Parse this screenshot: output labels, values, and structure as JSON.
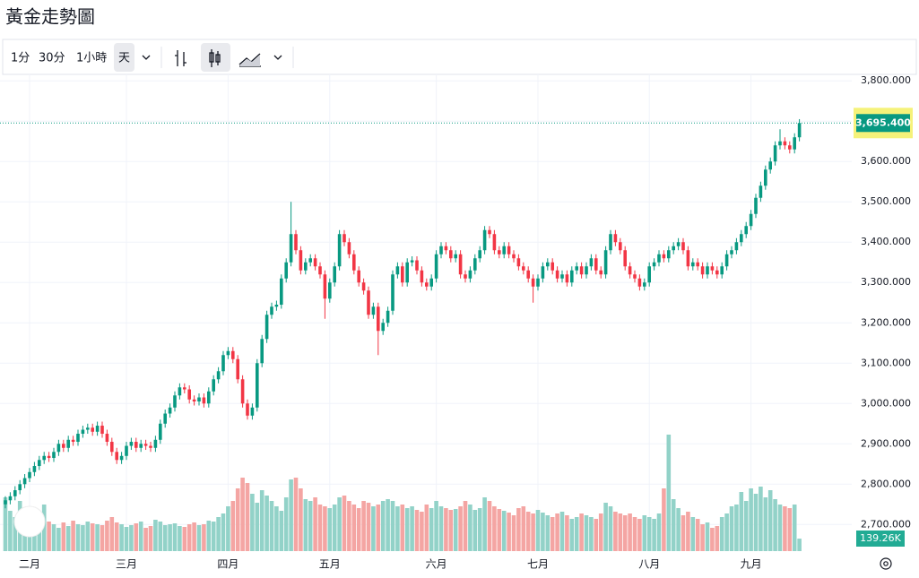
{
  "chart_data": {
    "type": "candlestick",
    "title": "黃金走勢圖",
    "toolbar": {
      "intervals": [
        "1分",
        "30分",
        "1小時",
        "天"
      ],
      "selected": 3
    },
    "up_color": "#089981",
    "down_color": "#f23645",
    "volume_up_color": "#92d2c8",
    "volume_down_color": "#f4a5a3",
    "ylim": [
      2634,
      3816
    ],
    "volume_lim": [
      0,
      5320
    ],
    "grid": true,
    "yticks": [
      {
        "value": 2700,
        "label": "2,700.000"
      },
      {
        "value": 2800,
        "label": "2,800.000"
      },
      {
        "value": 2900,
        "label": "2,900.000"
      },
      {
        "value": 3000,
        "label": "3,000.000"
      },
      {
        "value": 3100,
        "label": "3,100.000"
      },
      {
        "value": 3200,
        "label": "3,200.000"
      },
      {
        "value": 3300,
        "label": "3,300.000"
      },
      {
        "value": 3400,
        "label": "3,400.000"
      },
      {
        "value": 3500,
        "label": "3,500.000"
      },
      {
        "value": 3600,
        "label": "3,600.000"
      },
      {
        "value": 3700,
        "label": "3,700.000"
      },
      {
        "value": 3800,
        "label": "3,800.000"
      }
    ],
    "xticks": [
      {
        "value": 5,
        "label": "二月"
      },
      {
        "value": 25,
        "label": "三月"
      },
      {
        "value": 46,
        "label": "四月"
      },
      {
        "value": 67,
        "label": "五月"
      },
      {
        "value": 89,
        "label": "六月"
      },
      {
        "value": 110,
        "label": "七月"
      },
      {
        "value": 133,
        "label": "八月"
      },
      {
        "value": 154,
        "label": "九月"
      }
    ],
    "last_price_label": "3,695.400",
    "last_volume_label": "139.26K",
    "series": {
      "open": [
        2750,
        2760,
        2770,
        2785,
        2800,
        2815,
        2830,
        2845,
        2860,
        2870,
        2865,
        2880,
        2900,
        2890,
        2910,
        2905,
        2925,
        2935,
        2940,
        2930,
        2945,
        2925,
        2905,
        2880,
        2860,
        2870,
        2895,
        2905,
        2890,
        2900,
        2895,
        2890,
        2910,
        2950,
        2975,
        2990,
        3020,
        3040,
        3035,
        3010,
        3005,
        3015,
        3000,
        3030,
        3060,
        3080,
        3120,
        3130,
        3110,
        3060,
        3000,
        2970,
        2990,
        3100,
        3160,
        3220,
        3240,
        3245,
        3310,
        3350,
        3420,
        3380,
        3330,
        3350,
        3360,
        3340,
        3320,
        3260,
        3300,
        3340,
        3420,
        3400,
        3370,
        3330,
        3300,
        3280,
        3220,
        3240,
        3180,
        3200,
        3230,
        3320,
        3340,
        3300,
        3350,
        3355,
        3330,
        3300,
        3290,
        3310,
        3370,
        3390,
        3380,
        3360,
        3370,
        3320,
        3310,
        3330,
        3360,
        3380,
        3430,
        3420,
        3380,
        3370,
        3390,
        3370,
        3360,
        3340,
        3330,
        3310,
        3290,
        3310,
        3340,
        3350,
        3330,
        3310,
        3320,
        3300,
        3330,
        3340,
        3320,
        3340,
        3360,
        3330,
        3320,
        3380,
        3420,
        3400,
        3380,
        3340,
        3320,
        3310,
        3290,
        3300,
        3340,
        3350,
        3370,
        3360,
        3380,
        3390,
        3400,
        3380,
        3340,
        3350,
        3340,
        3320,
        3340,
        3330,
        3320,
        3340,
        3370,
        3380,
        3400,
        3420,
        3440,
        3470,
        3510,
        3540,
        3580,
        3600,
        3640,
        3650,
        3640,
        3630,
        3660
      ],
      "high": [
        2770,
        2780,
        2795,
        2810,
        2825,
        2840,
        2855,
        2870,
        2880,
        2880,
        2890,
        2910,
        2910,
        2920,
        2920,
        2935,
        2945,
        2950,
        2950,
        2955,
        2955,
        2935,
        2915,
        2890,
        2880,
        2905,
        2915,
        2915,
        2910,
        2910,
        2905,
        2920,
        2960,
        2985,
        3000,
        3030,
        3050,
        3050,
        3045,
        3020,
        3025,
        3025,
        3040,
        3070,
        3090,
        3130,
        3140,
        3140,
        3120,
        3070,
        3010,
        3000,
        3110,
        3170,
        3230,
        3250,
        3255,
        3320,
        3360,
        3500,
        3430,
        3390,
        3360,
        3370,
        3370,
        3350,
        3330,
        3310,
        3350,
        3430,
        3430,
        3410,
        3380,
        3340,
        3310,
        3290,
        3250,
        3250,
        3210,
        3240,
        3330,
        3350,
        3350,
        3360,
        3365,
        3365,
        3340,
        3310,
        3320,
        3380,
        3400,
        3400,
        3390,
        3380,
        3380,
        3330,
        3340,
        3370,
        3390,
        3440,
        3440,
        3430,
        3390,
        3400,
        3400,
        3380,
        3370,
        3350,
        3340,
        3320,
        3320,
        3350,
        3360,
        3360,
        3340,
        3330,
        3330,
        3340,
        3350,
        3350,
        3350,
        3370,
        3370,
        3340,
        3390,
        3430,
        3430,
        3410,
        3390,
        3350,
        3330,
        3320,
        3310,
        3350,
        3360,
        3380,
        3380,
        3390,
        3400,
        3410,
        3410,
        3390,
        3360,
        3360,
        3350,
        3350,
        3350,
        3340,
        3350,
        3380,
        3390,
        3410,
        3430,
        3450,
        3480,
        3520,
        3550,
        3590,
        3610,
        3650,
        3680,
        3660,
        3650,
        3670,
        3705
      ],
      "low": [
        2740,
        2750,
        2760,
        2775,
        2790,
        2805,
        2820,
        2835,
        2850,
        2855,
        2855,
        2870,
        2880,
        2880,
        2895,
        2895,
        2915,
        2925,
        2920,
        2920,
        2915,
        2895,
        2870,
        2850,
        2850,
        2860,
        2885,
        2880,
        2880,
        2885,
        2880,
        2880,
        2900,
        2940,
        2965,
        2980,
        3010,
        3025,
        3000,
        2995,
        2995,
        2990,
        2990,
        3020,
        3050,
        3070,
        3110,
        3100,
        3050,
        2990,
        2960,
        2960,
        2980,
        3090,
        3150,
        3210,
        3230,
        3235,
        3300,
        3340,
        3370,
        3320,
        3320,
        3340,
        3330,
        3310,
        3210,
        3250,
        3290,
        3330,
        3390,
        3360,
        3320,
        3290,
        3270,
        3210,
        3210,
        3120,
        3170,
        3190,
        3220,
        3310,
        3290,
        3290,
        3340,
        3320,
        3290,
        3280,
        3280,
        3300,
        3360,
        3370,
        3350,
        3350,
        3310,
        3300,
        3300,
        3320,
        3350,
        3370,
        3410,
        3370,
        3360,
        3360,
        3360,
        3350,
        3330,
        3320,
        3300,
        3250,
        3280,
        3300,
        3330,
        3320,
        3300,
        3300,
        3290,
        3290,
        3320,
        3310,
        3310,
        3330,
        3320,
        3310,
        3310,
        3370,
        3390,
        3370,
        3330,
        3310,
        3300,
        3280,
        3280,
        3290,
        3330,
        3340,
        3350,
        3350,
        3370,
        3380,
        3370,
        3330,
        3330,
        3330,
        3310,
        3310,
        3320,
        3310,
        3310,
        3330,
        3360,
        3370,
        3390,
        3410,
        3430,
        3460,
        3500,
        3530,
        3570,
        3590,
        3630,
        3630,
        3620,
        3620,
        3650
      ],
      "close": [
        2760,
        2770,
        2785,
        2800,
        2815,
        2830,
        2845,
        2860,
        2870,
        2865,
        2880,
        2900,
        2890,
        2910,
        2905,
        2925,
        2935,
        2940,
        2930,
        2945,
        2925,
        2905,
        2880,
        2860,
        2870,
        2895,
        2905,
        2890,
        2900,
        2895,
        2890,
        2910,
        2950,
        2975,
        2990,
        3020,
        3040,
        3035,
        3010,
        3005,
        3015,
        3000,
        3030,
        3060,
        3080,
        3120,
        3130,
        3110,
        3060,
        3000,
        2970,
        2990,
        3100,
        3160,
        3220,
        3240,
        3245,
        3310,
        3350,
        3420,
        3380,
        3330,
        3350,
        3360,
        3340,
        3320,
        3260,
        3300,
        3340,
        3420,
        3400,
        3370,
        3330,
        3300,
        3280,
        3220,
        3240,
        3180,
        3200,
        3230,
        3320,
        3340,
        3300,
        3350,
        3355,
        3330,
        3300,
        3290,
        3310,
        3370,
        3390,
        3380,
        3360,
        3370,
        3320,
        3310,
        3330,
        3360,
        3380,
        3430,
        3420,
        3380,
        3370,
        3390,
        3370,
        3360,
        3340,
        3330,
        3310,
        3290,
        3310,
        3340,
        3350,
        3330,
        3310,
        3320,
        3300,
        3330,
        3340,
        3320,
        3340,
        3360,
        3330,
        3320,
        3380,
        3420,
        3400,
        3380,
        3340,
        3320,
        3310,
        3290,
        3300,
        3340,
        3350,
        3370,
        3360,
        3380,
        3390,
        3400,
        3380,
        3340,
        3350,
        3340,
        3320,
        3340,
        3330,
        3320,
        3340,
        3370,
        3380,
        3400,
        3420,
        3440,
        3470,
        3510,
        3540,
        3580,
        3600,
        3640,
        3650,
        3640,
        3630,
        3660,
        3695.4
      ],
      "volume": [
        600,
        450,
        380,
        560,
        300,
        420,
        350,
        250,
        520,
        330,
        300,
        260,
        320,
        280,
        340,
        300,
        290,
        330,
        310,
        300,
        290,
        340,
        380,
        320,
        300,
        270,
        290,
        310,
        330,
        260,
        280,
        350,
        330,
        290,
        300,
        310,
        280,
        270,
        300,
        320,
        290,
        300,
        340,
        330,
        380,
        420,
        500,
        560,
        700,
        820,
        760,
        640,
        540,
        680,
        620,
        560,
        500,
        450,
        600,
        800,
        820,
        700,
        580,
        560,
        600,
        520,
        500,
        480,
        520,
        600,
        620,
        560,
        520,
        480,
        560,
        540,
        500,
        520,
        560,
        580,
        560,
        500,
        520,
        480,
        500,
        460,
        440,
        520,
        480,
        560,
        500,
        480,
        460,
        470,
        500,
        560,
        520,
        460,
        480,
        600,
        560,
        500,
        470,
        450,
        430,
        400,
        480,
        500,
        440,
        420,
        460,
        430,
        400,
        380,
        420,
        440,
        400,
        360,
        380,
        420,
        400,
        380,
        360,
        420,
        540,
        500,
        440,
        420,
        400,
        420,
        380,
        360,
        400,
        380,
        360,
        420,
        700,
        1300,
        580,
        480,
        400,
        440,
        380,
        360,
        300,
        320,
        260,
        280,
        380,
        420,
        500,
        520,
        660,
        560,
        700,
        640,
        720,
        600,
        680,
        580,
        520,
        500,
        480,
        520,
        139.26
      ]
    }
  }
}
